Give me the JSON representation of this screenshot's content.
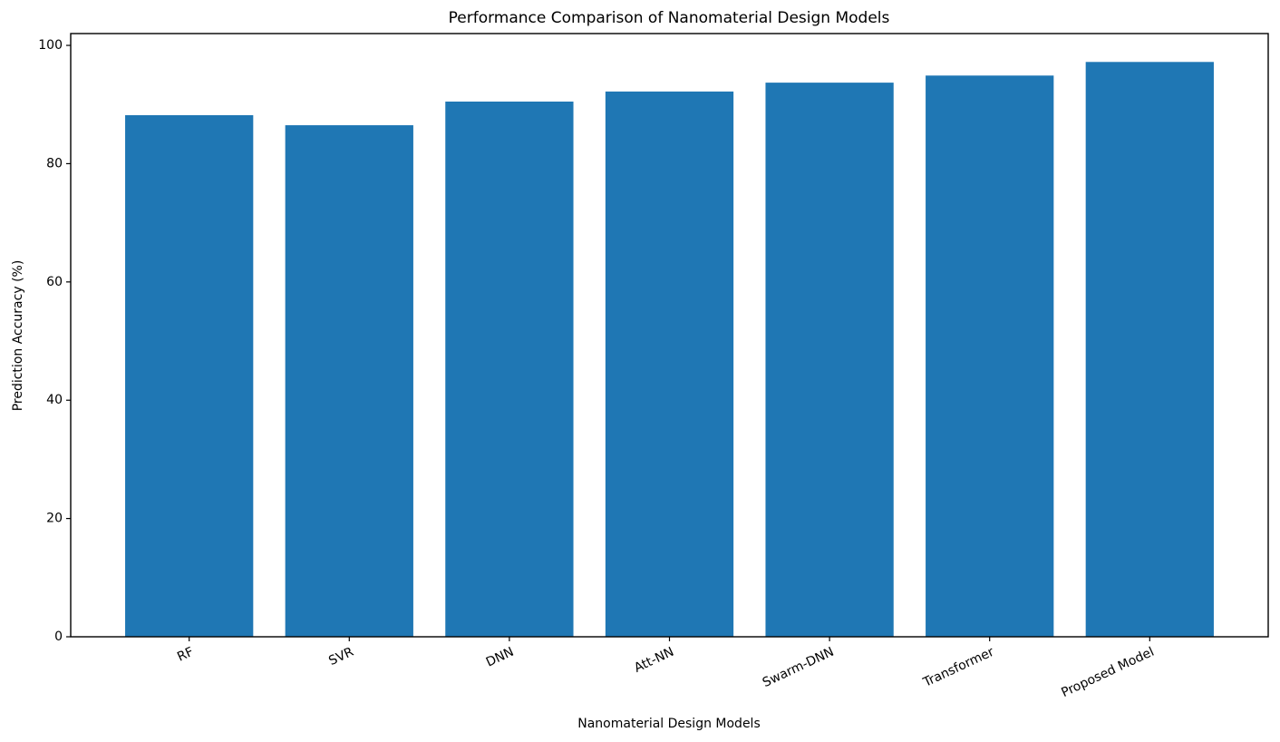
{
  "chart_data": {
    "type": "bar",
    "title": "Performance Comparison of Nanomaterial Design Models",
    "x_label": "Nanomaterial Design Models",
    "y_label": "Prediction Accuracy (%)",
    "categories": [
      "RF",
      "SVR",
      "DNN",
      "Att-NN",
      "Swarm-DNN",
      "Transformer",
      "Proposed Model"
    ],
    "values": [
      88.2,
      86.5,
      90.5,
      92.2,
      93.7,
      94.9,
      97.2
    ],
    "color": "#1f77b4",
    "ylim": [
      0,
      102
    ],
    "yticks": [
      0,
      20,
      40,
      60,
      80,
      100
    ],
    "grid": false
  }
}
